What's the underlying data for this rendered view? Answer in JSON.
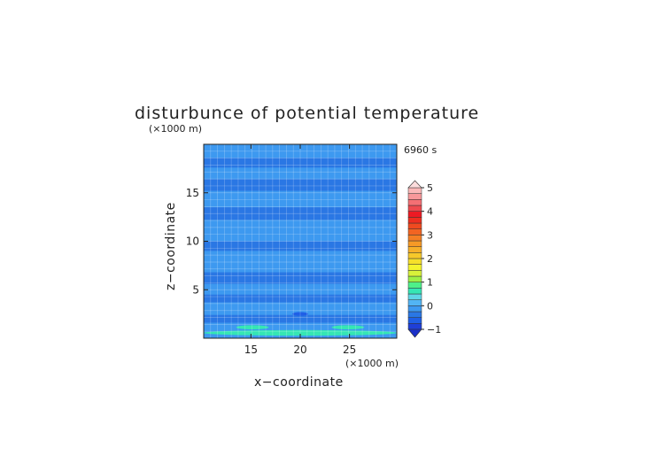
{
  "chart_data": {
    "type": "heatmap",
    "title": "disturbunce of potential temperature",
    "time_label": "6960 s",
    "xlabel": "x−coordinate",
    "ylabel": "z−coordinate",
    "x_unit": "(×1000 m)",
    "z_unit": "(×1000 m)",
    "xlim": [
      10.2,
      29.8
    ],
    "ylim": [
      0,
      20
    ],
    "x_ticks": [
      {
        "value": 15,
        "label": "15"
      },
      {
        "value": 20,
        "label": "20"
      },
      {
        "value": 25,
        "label": "25"
      }
    ],
    "y_ticks": [
      {
        "value": 5,
        "label": "5"
      },
      {
        "value": 10,
        "label": "10"
      },
      {
        "value": 15,
        "label": "15"
      }
    ],
    "colorbar": {
      "min": -1,
      "max": 5,
      "step": 0.25,
      "ticks": [
        {
          "value": 5,
          "label": "5"
        },
        {
          "value": 4,
          "label": "4"
        },
        {
          "value": 3,
          "label": "3"
        },
        {
          "value": 2,
          "label": "2"
        },
        {
          "value": 1,
          "label": "1"
        },
        {
          "value": 0,
          "label": "0"
        },
        {
          "value": -1,
          "label": "−1"
        }
      ]
    },
    "field_regions": [
      {
        "type": "band",
        "z0": 0,
        "z1": 20,
        "value": -0.25
      },
      {
        "type": "band",
        "z0": 17.6,
        "z1": 18.6,
        "value": -0.5
      },
      {
        "type": "band",
        "z0": 15.2,
        "z1": 16.4,
        "value": -0.5
      },
      {
        "type": "band",
        "z0": 12.2,
        "z1": 13.5,
        "value": -0.5
      },
      {
        "type": "band",
        "z0": 9.0,
        "z1": 10.0,
        "value": -0.5
      },
      {
        "type": "band",
        "z0": 5.6,
        "z1": 6.8,
        "value": -0.5
      },
      {
        "type": "band",
        "z0": 3.7,
        "z1": 4.5,
        "value": -0.5
      },
      {
        "type": "band",
        "z0": 1.6,
        "z1": 2.4,
        "value": -0.5
      },
      {
        "type": "patch",
        "x0": 10.2,
        "x1": 29.8,
        "z0": 0.35,
        "z1": 0.75,
        "value": 0.5
      },
      {
        "type": "patch",
        "x0": 13.5,
        "x1": 16.8,
        "z0": 1.0,
        "z1": 1.25,
        "value": 0.5
      },
      {
        "type": "patch",
        "x0": 23.2,
        "x1": 26.5,
        "z0": 1.0,
        "z1": 1.25,
        "value": 0.5
      },
      {
        "type": "patch",
        "x0": 19.2,
        "x1": 20.8,
        "z0": 2.4,
        "z1": 2.6,
        "value": -0.75
      }
    ]
  }
}
